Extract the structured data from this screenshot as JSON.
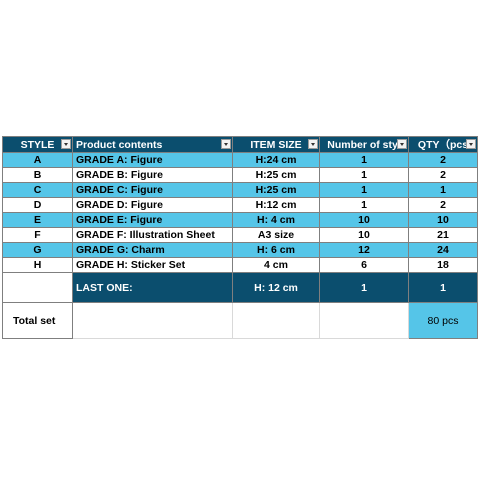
{
  "columns": [
    {
      "label": "STYLE",
      "align": "center"
    },
    {
      "label": "Product contents",
      "align": "left"
    },
    {
      "label": "ITEM SIZE",
      "align": "center"
    },
    {
      "label": "Number of styl",
      "align": "center"
    },
    {
      "label": "QTY（pcs",
      "align": "center"
    }
  ],
  "rows": [
    {
      "style": "A",
      "contents": "GRADE A: Figure",
      "size": "H:24 cm",
      "styles": "1",
      "qty": "2",
      "fill": "blue"
    },
    {
      "style": "B",
      "contents": "GRADE B: Figure",
      "size": "H:25 cm",
      "styles": "1",
      "qty": "2",
      "fill": "white"
    },
    {
      "style": "C",
      "contents": "GRADE C: Figure",
      "size": "H:25 cm",
      "styles": "1",
      "qty": "1",
      "fill": "blue"
    },
    {
      "style": "D",
      "contents": "GRADE D: Figure",
      "size": "H:12 cm",
      "styles": "1",
      "qty": "2",
      "fill": "white"
    },
    {
      "style": "E",
      "contents": "GRADE E: Figure",
      "size": "H: 4 cm",
      "styles": "10",
      "qty": "10",
      "fill": "blue"
    },
    {
      "style": "F",
      "contents": "GRADE F: Illustration Sheet",
      "size": "A3 size",
      "styles": "10",
      "qty": "21",
      "fill": "white"
    },
    {
      "style": "G",
      "contents": "GRADE G: Charm",
      "size": "H: 6 cm",
      "styles": "12",
      "qty": "24",
      "fill": "blue"
    },
    {
      "style": "H",
      "contents": "GRADE H: Sticker Set",
      "size": "4 cm",
      "styles": "6",
      "qty": "18",
      "fill": "white"
    }
  ],
  "last_one": {
    "style": "",
    "contents": "LAST ONE:",
    "size": "H: 12 cm",
    "styles": "1",
    "qty": "1"
  },
  "total": {
    "label": "Total set",
    "value": "80 pcs"
  },
  "colors": {
    "header": "#0b4e6e",
    "highlight": "#55c5e8"
  }
}
